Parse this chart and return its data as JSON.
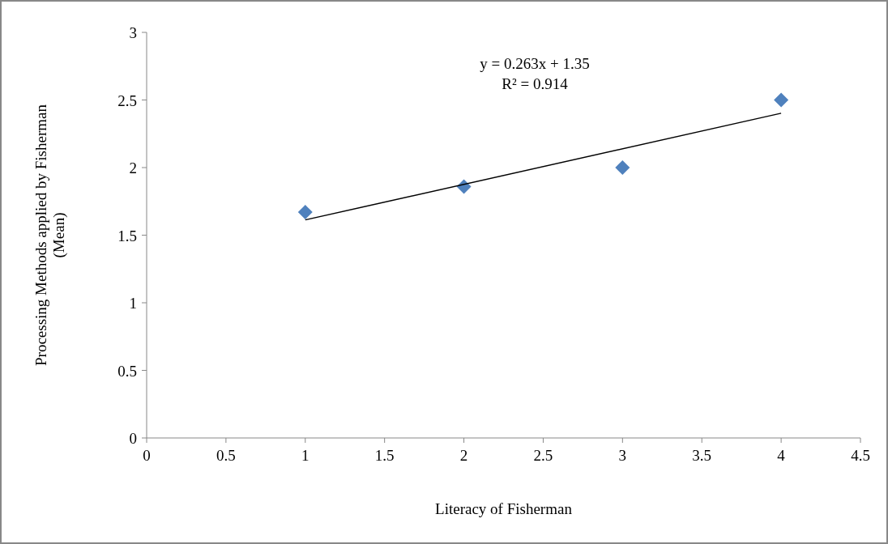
{
  "chart_data": {
    "type": "scatter",
    "xlabel": "Literacy of Fisherman",
    "ylabel": "Processing Methods applied by Fisherman\n(Mean)",
    "xlim": [
      0,
      4.5
    ],
    "xticks": [
      0,
      0.5,
      1,
      1.5,
      2,
      2.5,
      3,
      3.5,
      4,
      4.5
    ],
    "ylim": [
      0,
      3
    ],
    "yticks": [
      0,
      0.5,
      1,
      1.5,
      2,
      2.5,
      3
    ],
    "annotations": [
      "y = 0.263x + 1.35",
      "R² = 0.914"
    ],
    "grid": false,
    "series": [
      {
        "color": "#4f81bd",
        "marker": "diamond",
        "x": [
          1,
          2,
          3,
          4
        ],
        "values": [
          1.67,
          1.86,
          2.0,
          2.5
        ]
      },
      {
        "type": "line",
        "color": "#000000",
        "marker": "none",
        "line_style": "solid",
        "x": [
          1,
          4
        ],
        "values": [
          1.613,
          2.402
        ]
      }
    ]
  }
}
